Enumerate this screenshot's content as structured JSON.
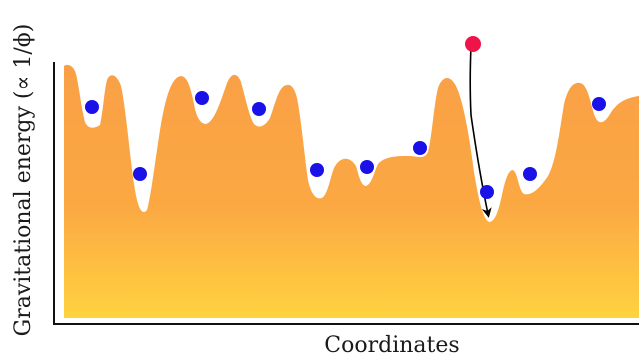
{
  "axes": {
    "xlabel": "Coordinates",
    "ylabel": "Gravitational energy (∝ 1/ϕ)"
  },
  "colors": {
    "landscape_top": "#f9a046",
    "landscape_bottom": "#ffd23f",
    "minimum_ball": "#1a10e8",
    "falling_ball": "#f0134a",
    "axis_line": "#111111",
    "trajectory": "#000000"
  },
  "legend": {
    "minima_count": 10,
    "falling_ball_count": 1
  }
}
